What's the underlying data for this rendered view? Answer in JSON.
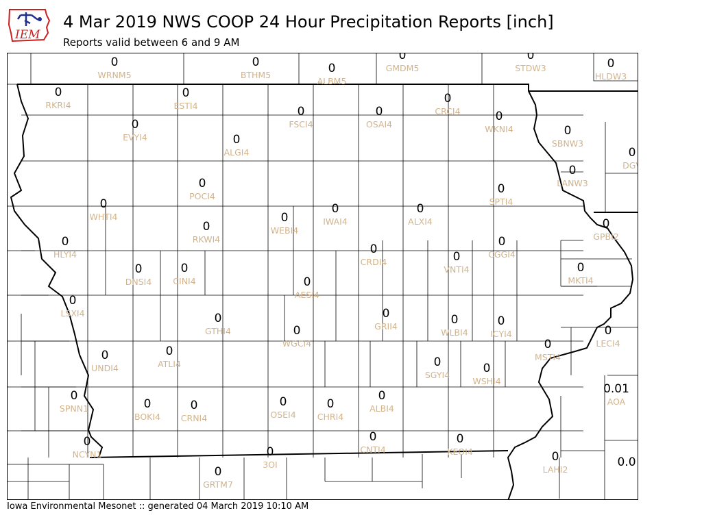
{
  "header": {
    "title": "4 Mar 2019 NWS COOP 24 Hour Precipitation Reports [inch]",
    "subtitle": "Reports valid between 6 and 9 AM",
    "logo_text": "IEM"
  },
  "footer": {
    "text": "Iowa Environmental Mesonet :: generated 04 March 2019 10:10 AM"
  },
  "colors": {
    "station_id": "#d2b48c",
    "value": "#000000",
    "logo_red": "#cc1f1f",
    "logo_blue": "#1f2f8c"
  },
  "stations": [
    {
      "id": "WRNM5",
      "value": "0"
    },
    {
      "id": "BTHM5",
      "value": "0"
    },
    {
      "id": "ALBM5",
      "value": "0"
    },
    {
      "id": "GMDM5",
      "value": "0"
    },
    {
      "id": "STDW3",
      "value": "0"
    },
    {
      "id": "HLDW3",
      "value": "0"
    },
    {
      "id": "RKRI4",
      "value": "0"
    },
    {
      "id": "ESTI4",
      "value": "0"
    },
    {
      "id": "FSCI4",
      "value": "0"
    },
    {
      "id": "OSAI4",
      "value": "0"
    },
    {
      "id": "CRCI4",
      "value": "0"
    },
    {
      "id": "WKNI4",
      "value": "0"
    },
    {
      "id": "EVYI4",
      "value": "0"
    },
    {
      "id": "ALGI4",
      "value": "0"
    },
    {
      "id": "SBNW3",
      "value": "0"
    },
    {
      "id": "DGV",
      "value": "0"
    },
    {
      "id": "LANW3",
      "value": "0"
    },
    {
      "id": "POCI4",
      "value": "0"
    },
    {
      "id": "SPTI4",
      "value": "0"
    },
    {
      "id": "WHTI4",
      "value": "0"
    },
    {
      "id": "WEBI4",
      "value": "0"
    },
    {
      "id": "IWAI4",
      "value": "0"
    },
    {
      "id": "ALXI4",
      "value": "0"
    },
    {
      "id": "RKWI4",
      "value": "0"
    },
    {
      "id": "GPBI2",
      "value": "0"
    },
    {
      "id": "HLYI4",
      "value": "0"
    },
    {
      "id": "CRDI4",
      "value": "0"
    },
    {
      "id": "VNTI4",
      "value": "0"
    },
    {
      "id": "CGGI4",
      "value": "0"
    },
    {
      "id": "DNSI4",
      "value": "0"
    },
    {
      "id": "CINI4",
      "value": "0"
    },
    {
      "id": "MKTI4",
      "value": "0"
    },
    {
      "id": "AESI4",
      "value": "0"
    },
    {
      "id": "LSXI4",
      "value": "0"
    },
    {
      "id": "GRII4",
      "value": "0"
    },
    {
      "id": "GTHI4",
      "value": "0"
    },
    {
      "id": "WLBI4",
      "value": "0"
    },
    {
      "id": "ICYI4",
      "value": "0"
    },
    {
      "id": "WGCI4",
      "value": "0"
    },
    {
      "id": "LECI4",
      "value": "0"
    },
    {
      "id": "MSTI4",
      "value": "0"
    },
    {
      "id": "ATLI4",
      "value": "0"
    },
    {
      "id": "UNDI4",
      "value": "0"
    },
    {
      "id": "SGYI4",
      "value": "0"
    },
    {
      "id": "WSHI4",
      "value": "0"
    },
    {
      "id": "AOA",
      "value": "0.01"
    },
    {
      "id": "SPNN1",
      "value": "0"
    },
    {
      "id": "OSEI4",
      "value": "0"
    },
    {
      "id": "ALBI4",
      "value": "0"
    },
    {
      "id": "BOKI4",
      "value": "0"
    },
    {
      "id": "CRNI4",
      "value": "0"
    },
    {
      "id": "CHRI4",
      "value": "0"
    },
    {
      "id": "CNTI4",
      "value": "0"
    },
    {
      "id": "KEOI4",
      "value": "0"
    },
    {
      "id": "NCYN1",
      "value": "0"
    },
    {
      "id": "3OI",
      "value": "0"
    },
    {
      "id": "LAHI2",
      "value": "0"
    },
    {
      "id": "",
      "value": "0.0"
    },
    {
      "id": "GRTM7",
      "value": "0"
    }
  ]
}
